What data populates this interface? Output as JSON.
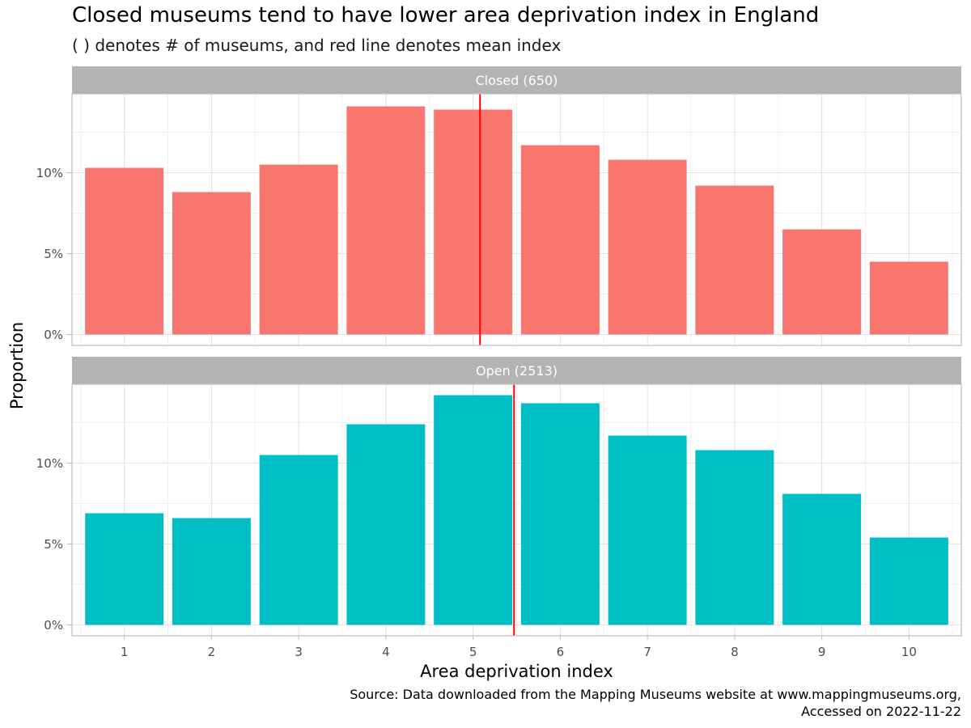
{
  "title": "Closed museums tend to have lower area deprivation index in England",
  "subtitle": "( ) denotes # of museums, and red line denotes mean index",
  "caption": {
    "line1": "Source: Data downloaded from the Mapping Museums website at www.mappingmuseums.org,",
    "line2": "Accessed on 2022-11-22"
  },
  "chart_data": {
    "type": "bar",
    "xlabel": "Area deprivation index",
    "ylabel": "Proportion",
    "categories": [
      "1",
      "2",
      "3",
      "4",
      "5",
      "6",
      "7",
      "8",
      "9",
      "10"
    ],
    "y_ticks": [
      0,
      5,
      10
    ],
    "y_tick_labels": [
      "0%",
      "5%",
      "10%"
    ],
    "ylim": [
      0,
      15
    ],
    "y_unit": "percent",
    "grid": true,
    "panels": [
      {
        "label": "Closed (650)",
        "color": "#F8766D",
        "values": [
          10.3,
          8.8,
          10.5,
          14.1,
          13.9,
          11.7,
          10.8,
          9.2,
          6.5,
          4.5
        ],
        "mean_index": 5.08
      },
      {
        "label": "Open (2513)",
        "color": "#00BFC4",
        "values": [
          6.9,
          6.6,
          10.5,
          12.4,
          14.2,
          13.7,
          11.7,
          10.8,
          8.1,
          5.4
        ],
        "mean_index": 5.47
      }
    ],
    "mean_line_color": "#FF0000",
    "strip_color": "#B3B3B3"
  }
}
